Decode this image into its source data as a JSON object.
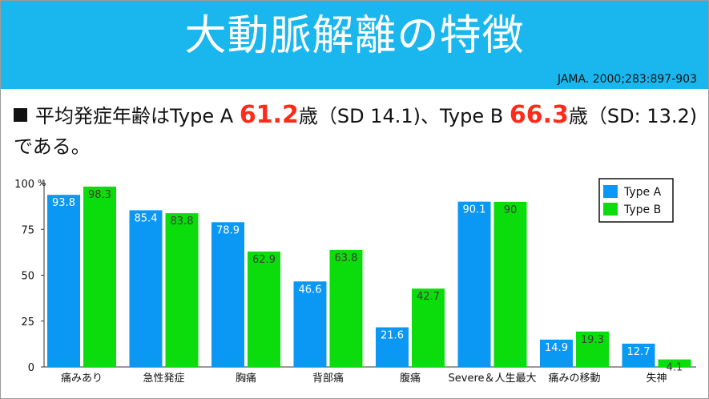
{
  "header": {
    "title": "大動脈解離の特徴",
    "citation": "JAMA. 2000;283:897-903"
  },
  "summary": {
    "prefix": "平均発症年齢はType A ",
    "type_a_age": "61.2",
    "mid": "歳（SD 14.1)、Type B ",
    "type_b_age": "66.3",
    "suffix": "歳（SD: 13.2)である。"
  },
  "colors": {
    "type_a": "#0b98f5",
    "type_b": "#0bdc0b",
    "header": "#1ab7ee",
    "highlight": "#ff2a1a"
  },
  "chart_data": {
    "type": "bar",
    "categories": [
      "痛みあり",
      "急性発症",
      "胸痛",
      "背部痛",
      "腹痛",
      "Severe＆人生最大",
      "痛みの移動",
      "失神"
    ],
    "series": [
      {
        "name": "Type A",
        "values": [
          93.8,
          85.4,
          78.9,
          46.6,
          21.6,
          90.1,
          14.9,
          12.7
        ]
      },
      {
        "name": "Type B",
        "values": [
          98.3,
          83.8,
          62.9,
          63.8,
          42.7,
          90,
          19.3,
          4.1
        ]
      }
    ],
    "yticks": [
      0,
      25,
      50,
      75,
      100
    ],
    "y_unit": "%",
    "ylim": [
      0,
      100
    ],
    "legend": "top-right",
    "grid": false
  }
}
